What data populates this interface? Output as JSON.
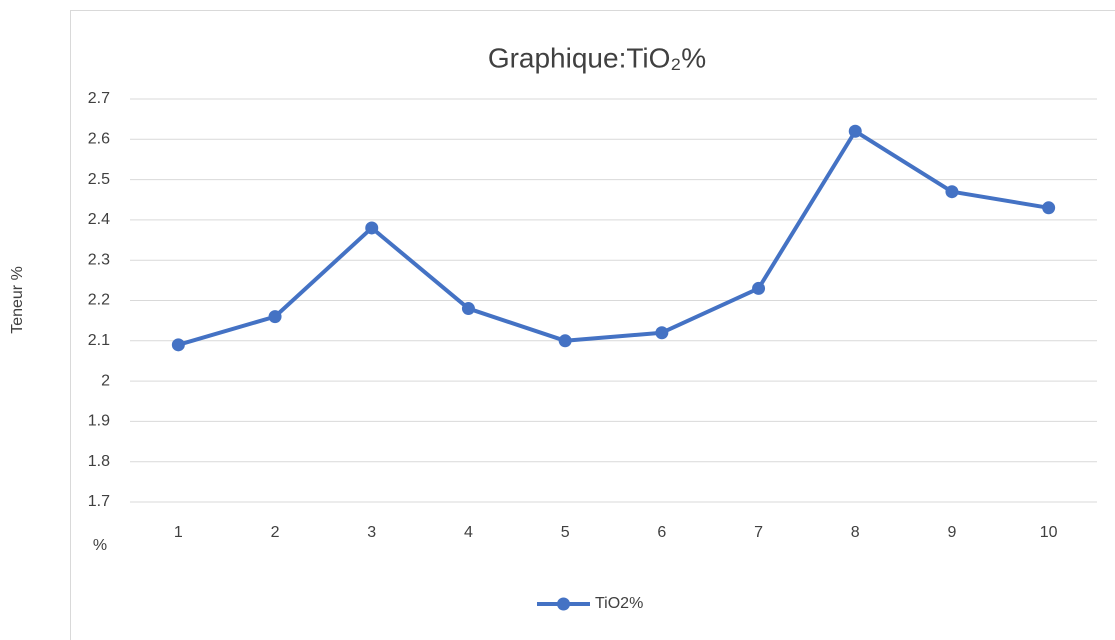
{
  "chart_data": {
    "type": "line",
    "title": "Graphique:TiO₂%",
    "y_label": "Teneur  %",
    "annotation": "%",
    "categories": [
      "1",
      "2",
      "3",
      "4",
      "5",
      "6",
      "7",
      "8",
      "9",
      "10"
    ],
    "series": [
      {
        "name": "TiO2%",
        "color": "#4472c4",
        "values": [
          2.09,
          2.16,
          2.38,
          2.18,
          2.1,
          2.12,
          2.23,
          2.62,
          2.47,
          2.43
        ]
      }
    ],
    "ylim": [
      1.7,
      2.7
    ],
    "yticks": [
      1.7,
      1.8,
      1.9,
      2,
      2.1,
      2.2,
      2.3,
      2.4,
      2.5,
      2.6,
      2.7
    ],
    "grid": true,
    "legend": "bottom"
  }
}
